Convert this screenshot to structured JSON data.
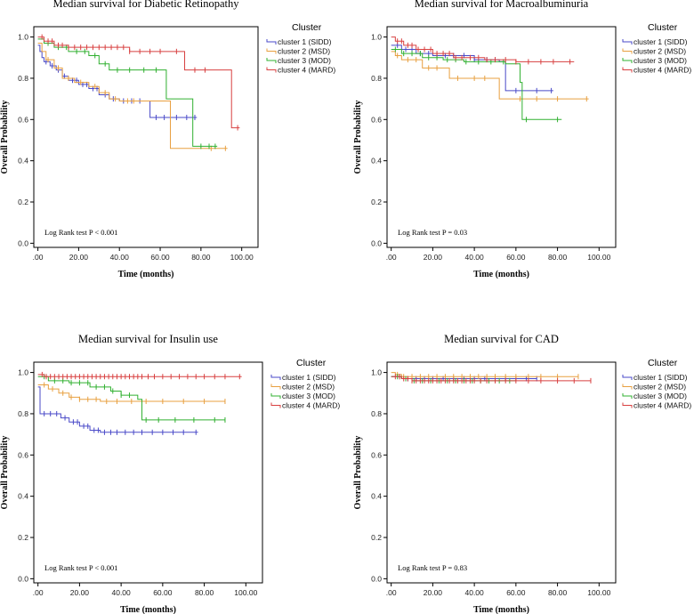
{
  "chart_data": [
    {
      "type": "line",
      "title": "Median survival for Diabetic Retinopathy",
      "xlabel": "Time (months)",
      "ylabel": "Overall Probability",
      "xlim": [
        -2,
        108
      ],
      "ylim": [
        -0.02,
        1.05
      ],
      "x_ticks": [
        ".00",
        "20.00",
        "40.00",
        "60.00",
        "80.00",
        "100.00"
      ],
      "y_ticks": [
        "0.0",
        "0.2",
        "0.4",
        "0.6",
        "0.8",
        "1.0"
      ],
      "annotation": "Log Rank test P < 0.001",
      "legend_title": "Cluster",
      "series": [
        {
          "name": "cluster 1 (SIDD)",
          "color": "#4a4ac8",
          "points": [
            [
              0,
              0.96
            ],
            [
              1,
              0.93
            ],
            [
              2,
              0.9
            ],
            [
              3,
              0.88
            ],
            [
              6,
              0.86
            ],
            [
              9,
              0.84
            ],
            [
              12,
              0.81
            ],
            [
              15,
              0.79
            ],
            [
              20,
              0.77
            ],
            [
              25,
              0.75
            ],
            [
              30,
              0.72
            ],
            [
              35,
              0.7
            ],
            [
              40,
              0.69
            ],
            [
              55,
              0.61
            ],
            [
              78,
              0.61
            ]
          ],
          "censor": [
            4,
            7,
            10,
            13,
            17,
            19,
            22,
            24,
            27,
            29,
            33,
            37,
            42,
            46,
            50,
            58,
            62,
            68,
            73,
            77
          ]
        },
        {
          "name": "cluster 2 (MSD)",
          "color": "#e8a040",
          "points": [
            [
              0,
              0.97
            ],
            [
              2,
              0.93
            ],
            [
              4,
              0.89
            ],
            [
              8,
              0.85
            ],
            [
              12,
              0.8
            ],
            [
              18,
              0.78
            ],
            [
              25,
              0.76
            ],
            [
              30,
              0.73
            ],
            [
              35,
              0.7
            ],
            [
              40,
              0.69
            ],
            [
              48,
              0.69
            ],
            [
              65,
              0.46
            ],
            [
              93,
              0.46
            ]
          ],
          "censor": [
            5,
            10,
            15,
            21,
            28,
            33,
            38,
            44,
            47,
            85,
            92
          ]
        },
        {
          "name": "cluster 3 (MOD)",
          "color": "#30b030",
          "points": [
            [
              0,
              0.99
            ],
            [
              3,
              0.97
            ],
            [
              8,
              0.95
            ],
            [
              15,
              0.93
            ],
            [
              25,
              0.91
            ],
            [
              30,
              0.87
            ],
            [
              35,
              0.84
            ],
            [
              63,
              0.7
            ],
            [
              76,
              0.47
            ],
            [
              88,
              0.47
            ]
          ],
          "censor": [
            5,
            10,
            14,
            19,
            23,
            28,
            33,
            39,
            45,
            52,
            58,
            80,
            84,
            87
          ]
        },
        {
          "name": "cluster 4 (MARD)",
          "color": "#d84040",
          "points": [
            [
              0,
              1.0
            ],
            [
              3,
              0.98
            ],
            [
              8,
              0.96
            ],
            [
              15,
              0.95
            ],
            [
              30,
              0.95
            ],
            [
              45,
              0.93
            ],
            [
              63,
              0.93
            ],
            [
              72,
              0.84
            ],
            [
              95,
              0.56
            ],
            [
              99,
              0.56
            ]
          ],
          "censor": [
            2,
            5,
            7,
            10,
            12,
            15,
            18,
            21,
            24,
            27,
            30,
            33,
            36,
            39,
            42,
            45,
            50,
            55,
            60,
            68,
            77,
            82,
            98
          ]
        }
      ]
    },
    {
      "type": "line",
      "title": "Median survival for Macroalbuminuria",
      "xlabel": "Time (months)",
      "ylabel": "Overall Probability",
      "xlim": [
        -2,
        108
      ],
      "ylim": [
        -0.02,
        1.05
      ],
      "x_ticks": [
        ".00",
        "20.00",
        "40.00",
        "60.00",
        "80.00",
        "100.00"
      ],
      "y_ticks": [
        "0.0",
        "0.2",
        "0.4",
        "0.6",
        "0.8",
        "1.0"
      ],
      "annotation": "Log Rank test P = 0.03",
      "legend_title": "Cluster",
      "series": [
        {
          "name": "cluster 1 (SIDD)",
          "color": "#4a4ac8",
          "points": [
            [
              0,
              0.96
            ],
            [
              5,
              0.94
            ],
            [
              12,
              0.92
            ],
            [
              20,
              0.91
            ],
            [
              40,
              0.89
            ],
            [
              52,
              0.88
            ],
            [
              55,
              0.74
            ],
            [
              78,
              0.74
            ]
          ],
          "censor": [
            3,
            7,
            10,
            14,
            18,
            22,
            26,
            30,
            35,
            40,
            46,
            50,
            60,
            70,
            77
          ]
        },
        {
          "name": "cluster 2 (MSD)",
          "color": "#e8a040",
          "points": [
            [
              0,
              0.93
            ],
            [
              2,
              0.91
            ],
            [
              5,
              0.89
            ],
            [
              15,
              0.85
            ],
            [
              28,
              0.8
            ],
            [
              50,
              0.8
            ],
            [
              52,
              0.7
            ],
            [
              95,
              0.7
            ]
          ],
          "censor": [
            3,
            8,
            12,
            18,
            22,
            32,
            40,
            45,
            62,
            70,
            80,
            94
          ]
        },
        {
          "name": "cluster 3 (MOD)",
          "color": "#30b030",
          "points": [
            [
              0,
              0.94
            ],
            [
              5,
              0.92
            ],
            [
              15,
              0.9
            ],
            [
              25,
              0.89
            ],
            [
              35,
              0.88
            ],
            [
              55,
              0.87
            ],
            [
              62,
              0.78
            ],
            [
              63,
              0.6
            ],
            [
              82,
              0.6
            ]
          ],
          "censor": [
            2,
            6,
            10,
            14,
            18,
            22,
            27,
            31,
            36,
            42,
            48,
            54,
            65,
            80
          ]
        },
        {
          "name": "cluster 4 (MARD)",
          "color": "#d84040",
          "points": [
            [
              0,
              1.0
            ],
            [
              2,
              0.98
            ],
            [
              6,
              0.96
            ],
            [
              12,
              0.94
            ],
            [
              20,
              0.92
            ],
            [
              30,
              0.9
            ],
            [
              45,
              0.89
            ],
            [
              60,
              0.88
            ],
            [
              88,
              0.88
            ]
          ],
          "censor": [
            3,
            5,
            8,
            10,
            13,
            16,
            19,
            22,
            25,
            28,
            31,
            34,
            38,
            42,
            46,
            50,
            55,
            60,
            66,
            72,
            78,
            86
          ]
        }
      ]
    },
    {
      "type": "line",
      "title": "Median survival for Insulin use",
      "xlabel": "Time (months)",
      "ylabel": "Overall Probability",
      "xlim": [
        -2,
        108
      ],
      "ylim": [
        -0.02,
        1.05
      ],
      "x_ticks": [
        ".00",
        "20.00",
        "40.00",
        "60.00",
        "80.00",
        "100.00"
      ],
      "y_ticks": [
        "0.0",
        "0.2",
        "0.4",
        "0.6",
        "0.8",
        "1.0"
      ],
      "annotation": "Log Rank test P < 0.001",
      "legend_title": "Cluster",
      "series": [
        {
          "name": "cluster 1 (SIDD)",
          "color": "#4a4ac8",
          "points": [
            [
              0,
              0.93
            ],
            [
              1,
              0.8
            ],
            [
              10,
              0.8
            ],
            [
              11,
              0.78
            ],
            [
              15,
              0.76
            ],
            [
              20,
              0.74
            ],
            [
              25,
              0.72
            ],
            [
              30,
              0.71
            ],
            [
              77,
              0.71
            ]
          ],
          "censor": [
            3,
            6,
            9,
            13,
            17,
            19,
            22,
            24,
            27,
            29,
            32,
            35,
            38,
            42,
            46,
            50,
            55,
            60,
            65,
            70,
            76
          ]
        },
        {
          "name": "cluster 2 (MSD)",
          "color": "#e8a040",
          "points": [
            [
              0,
              0.94
            ],
            [
              5,
              0.92
            ],
            [
              10,
              0.9
            ],
            [
              15,
              0.88
            ],
            [
              20,
              0.87
            ],
            [
              30,
              0.86
            ],
            [
              90,
              0.86
            ]
          ],
          "censor": [
            3,
            7,
            12,
            16,
            20,
            24,
            28,
            33,
            38,
            45,
            52,
            60,
            70,
            80,
            90
          ]
        },
        {
          "name": "cluster 3 (MOD)",
          "color": "#30b030",
          "points": [
            [
              0,
              0.98
            ],
            [
              5,
              0.96
            ],
            [
              15,
              0.95
            ],
            [
              25,
              0.93
            ],
            [
              35,
              0.91
            ],
            [
              40,
              0.89
            ],
            [
              48,
              0.87
            ],
            [
              50,
              0.77
            ],
            [
              90,
              0.77
            ]
          ],
          "censor": [
            3,
            8,
            12,
            16,
            20,
            24,
            28,
            32,
            36,
            40,
            44,
            52,
            58,
            66,
            75,
            85,
            90
          ]
        },
        {
          "name": "cluster 4 (MARD)",
          "color": "#d84040",
          "points": [
            [
              0,
              0.99
            ],
            [
              3,
              0.98
            ],
            [
              98,
              0.98
            ]
          ],
          "censor": [
            2,
            4,
            6,
            8,
            10,
            12,
            14,
            16,
            18,
            20,
            22,
            24,
            26,
            28,
            30,
            32,
            34,
            36,
            38,
            40,
            42,
            44,
            46,
            48,
            50,
            53,
            56,
            60,
            64,
            68,
            72,
            76,
            80,
            85,
            90,
            97
          ]
        }
      ]
    },
    {
      "type": "line",
      "title": "Median survival for CAD",
      "xlabel": "Time (months)",
      "ylabel": "Overall Probability",
      "xlim": [
        -2,
        108
      ],
      "ylim": [
        -0.02,
        1.05
      ],
      "x_ticks": [
        ".00",
        "20.00",
        "40.00",
        "60.00",
        "80.00",
        "100.00"
      ],
      "y_ticks": [
        "0.0",
        "0.2",
        "0.4",
        "0.6",
        "0.8",
        "1.0"
      ],
      "annotation": "Log Rank test P = 0.83",
      "legend_title": "Cluster",
      "series": [
        {
          "name": "cluster 1 (SIDD)",
          "color": "#4a4ac8",
          "points": [
            [
              0,
              0.98
            ],
            [
              5,
              0.97
            ],
            [
              70,
              0.97
            ]
          ],
          "censor": [
            4,
            8,
            12,
            16,
            20,
            25,
            30,
            35,
            40,
            45,
            50,
            55,
            60,
            65,
            70
          ]
        },
        {
          "name": "cluster 2 (MSD)",
          "color": "#e8a040",
          "points": [
            [
              0,
              1.0
            ],
            [
              2,
              0.99
            ],
            [
              5,
              0.98
            ],
            [
              90,
              0.98
            ]
          ],
          "censor": [
            3,
            6,
            10,
            14,
            18,
            22,
            26,
            30,
            34,
            38,
            42,
            46,
            50,
            55,
            60,
            66,
            72,
            80,
            90
          ]
        },
        {
          "name": "cluster 3 (MOD)",
          "color": "#30b030",
          "points": [
            [
              0,
              0.98
            ],
            [
              5,
              0.97
            ],
            [
              10,
              0.96
            ],
            [
              60,
              0.96
            ]
          ],
          "censor": [
            3,
            7,
            11,
            15,
            19,
            23,
            27,
            31,
            35,
            39,
            43,
            47,
            52,
            57
          ]
        },
        {
          "name": "cluster 4 (MARD)",
          "color": "#d84040",
          "points": [
            [
              0,
              0.98
            ],
            [
              5,
              0.97
            ],
            [
              10,
              0.96
            ],
            [
              96,
              0.96
            ]
          ],
          "censor": [
            2,
            4,
            6,
            8,
            10,
            12,
            14,
            16,
            18,
            20,
            22,
            24,
            26,
            28,
            30,
            32,
            34,
            36,
            38,
            40,
            43,
            46,
            50,
            55,
            60,
            66,
            72,
            80,
            88,
            96
          ]
        }
      ]
    }
  ]
}
